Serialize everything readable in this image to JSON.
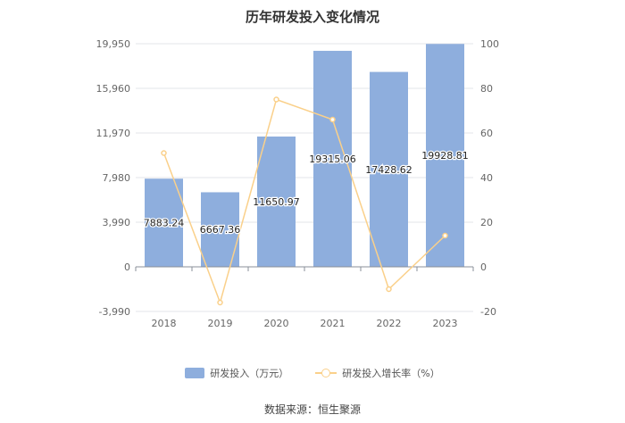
{
  "chart_data": {
    "type": "bar",
    "title": "历年研发投入变化情况",
    "categories": [
      "2018",
      "2019",
      "2020",
      "2021",
      "2022",
      "2023"
    ],
    "series": [
      {
        "name": "研发投入（万元）",
        "type": "bar",
        "axis": "left",
        "values": [
          7883.24,
          6667.36,
          11650.97,
          19315.06,
          17428.62,
          19928.81
        ],
        "labels": [
          "7883.24",
          "6667.36",
          "11650.97",
          "19315.06",
          "17428.62",
          "19928.81"
        ],
        "color": "#8eaedd"
      },
      {
        "name": "研发投入增长率（%）",
        "type": "line",
        "axis": "right",
        "values": [
          51,
          -16,
          75,
          66,
          -10,
          14
        ],
        "color": "#fad08a"
      }
    ],
    "y_left": {
      "ylim": [
        -3990,
        19950
      ],
      "ticks": [
        -3990,
        0,
        3990,
        7980,
        11970,
        15960,
        19950
      ],
      "tick_labels": [
        "-3,990",
        "0",
        "3,990",
        "7,980",
        "11,970",
        "15,960",
        "19,950"
      ]
    },
    "y_right": {
      "ylim": [
        -20,
        100
      ],
      "ticks": [
        -20,
        0,
        20,
        40,
        60,
        80,
        100
      ],
      "tick_labels": [
        "-20",
        "0",
        "20",
        "40",
        "60",
        "80",
        "100"
      ]
    },
    "grid": true,
    "legend_position": "bottom"
  },
  "source": "数据来源：恒生聚源"
}
